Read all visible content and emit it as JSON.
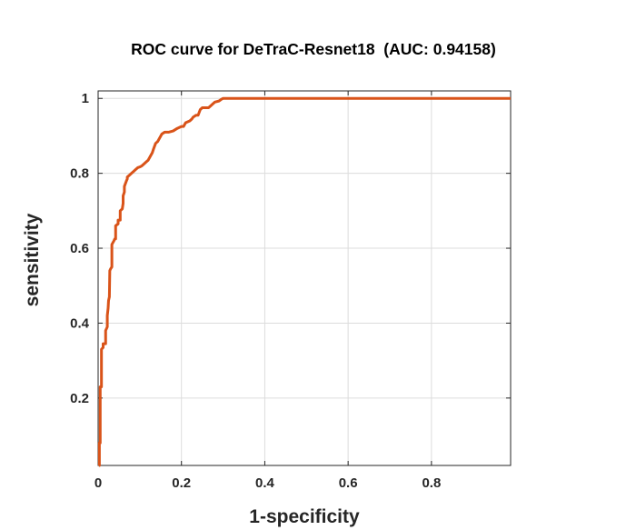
{
  "chart_data": {
    "type": "line",
    "title": "ROC curve for DeTraC-Resnet18  (AUC: 0.94158)",
    "xlabel": "1-specificity",
    "ylabel": "sensitivity",
    "xlim": [
      0,
      0.99
    ],
    "ylim": [
      0.02,
      1.02
    ],
    "xticks": [
      0,
      0.2,
      0.4,
      0.6,
      0.8
    ],
    "xtick_labels": [
      "0",
      "0.2",
      "0.4",
      "0.6",
      "0.8"
    ],
    "yticks": [
      0.2,
      0.4,
      0.6,
      0.8,
      1
    ],
    "ytick_labels": [
      "0.2",
      "0.4",
      "0.6",
      "0.8",
      "1"
    ],
    "grid": true,
    "line_color": "#d95319",
    "series": [
      {
        "x": [
          0.002,
          0.003,
          0.003,
          0.005,
          0.005,
          0.008,
          0.008,
          0.012,
          0.012,
          0.018,
          0.018,
          0.022,
          0.022,
          0.024,
          0.025,
          0.027,
          0.028,
          0.03,
          0.033,
          0.033,
          0.038,
          0.04,
          0.042,
          0.042,
          0.048,
          0.048,
          0.053,
          0.053,
          0.058,
          0.06,
          0.06,
          0.063,
          0.063,
          0.068,
          0.07,
          0.07,
          0.075,
          0.08,
          0.085,
          0.09,
          0.095,
          0.1,
          0.105,
          0.11,
          0.115,
          0.12,
          0.125,
          0.13,
          0.133,
          0.138,
          0.143,
          0.148,
          0.153,
          0.16,
          0.165,
          0.17,
          0.18,
          0.19,
          0.2,
          0.205,
          0.21,
          0.22,
          0.225,
          0.228,
          0.235,
          0.24,
          0.245,
          0.25,
          0.255,
          0.265,
          0.27,
          0.275,
          0.28,
          0.29,
          0.295,
          0.3,
          0.31,
          0.32,
          0.5,
          0.99
        ],
        "y": [
          0.02,
          0.02,
          0.08,
          0.08,
          0.23,
          0.23,
          0.33,
          0.335,
          0.345,
          0.345,
          0.38,
          0.39,
          0.42,
          0.44,
          0.46,
          0.47,
          0.54,
          0.545,
          0.55,
          0.61,
          0.62,
          0.625,
          0.625,
          0.66,
          0.665,
          0.675,
          0.675,
          0.7,
          0.705,
          0.72,
          0.74,
          0.75,
          0.765,
          0.78,
          0.785,
          0.79,
          0.795,
          0.8,
          0.805,
          0.81,
          0.815,
          0.817,
          0.82,
          0.825,
          0.83,
          0.835,
          0.845,
          0.855,
          0.865,
          0.88,
          0.885,
          0.895,
          0.905,
          0.91,
          0.91,
          0.91,
          0.913,
          0.92,
          0.925,
          0.925,
          0.935,
          0.94,
          0.945,
          0.95,
          0.955,
          0.955,
          0.97,
          0.975,
          0.975,
          0.975,
          0.98,
          0.985,
          0.99,
          0.993,
          0.997,
          1.0,
          1.0,
          1.0,
          1.0,
          1.0
        ]
      }
    ]
  }
}
